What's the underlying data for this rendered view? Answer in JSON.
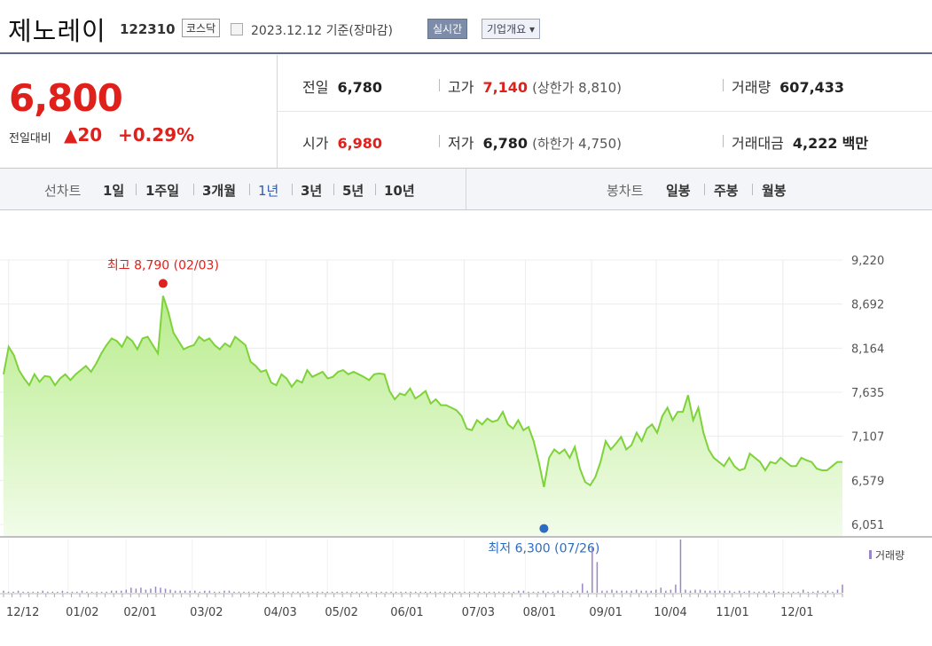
{
  "header": {
    "name": "제노레이",
    "code": "122310",
    "market": "코스닥",
    "date": "2023.12.12  기준(장마감)",
    "btn_realtime": "실시간",
    "btn_company": "기업개요 ▾"
  },
  "price": {
    "current": "6,800",
    "change_label": "전일대비",
    "change_value": "▲20",
    "change_pct": "+0.29%"
  },
  "stats": {
    "prev_label": "전일",
    "prev_value": "6,780",
    "open_label": "시가",
    "open_value": "6,980",
    "high_label": "고가",
    "high_value": "7,140",
    "upper_limit": "(상한가 8,810)",
    "low_label": "저가",
    "low_value": "6,780",
    "lower_limit": "(하한가 4,750)",
    "volume_label": "거래량",
    "volume_value": "607,433",
    "amount_label": "거래대금",
    "amount_value": "4,222",
    "amount_unit": "백만"
  },
  "period_bar": {
    "line_label": "선차트",
    "line_periods": [
      "1일",
      "1주일",
      "3개월",
      "1년",
      "3년",
      "5년",
      "10년"
    ],
    "active_period": "1년",
    "candle_label": "봉차트",
    "candle_periods": [
      "일봉",
      "주봉",
      "월봉"
    ]
  },
  "colors": {
    "red": "#e0201b",
    "blue": "#2d6cc4",
    "line": "#7ed23a",
    "volume": "#9a85c8"
  },
  "chart_data": {
    "type": "area",
    "y_ticks": [
      "9,220",
      "8,692",
      "8,164",
      "7,635",
      "7,107",
      "6,579",
      "6,051"
    ],
    "ylim": [
      6051,
      9220
    ],
    "x_ticks": [
      "12/12",
      "01/02",
      "02/01",
      "03/02",
      "04/03",
      "05/02",
      "06/01",
      "07/03",
      "08/01",
      "09/01",
      "10/04",
      "11/01",
      "12/01"
    ],
    "high_annotation": "최고 8,790 (02/03)",
    "low_annotation": "최저 6,300 (07/26)",
    "volume_legend": "거래량",
    "series": [
      {
        "values": [
          7850,
          8180,
          8080,
          7900,
          7800,
          7720,
          7850,
          7760,
          7830,
          7820,
          7720,
          7800,
          7850,
          7780,
          7850,
          7900,
          7950,
          7880,
          7980,
          8100,
          8200,
          8280,
          8250,
          8180,
          8300,
          8250,
          8150,
          8280,
          8300,
          8200,
          8100,
          8790,
          8600,
          8350,
          8250,
          8150,
          8180,
          8200,
          8300,
          8250,
          8280,
          8200,
          8150,
          8220,
          8180,
          8300,
          8250,
          8200,
          8000,
          7950,
          7880,
          7900,
          7750,
          7720,
          7850,
          7800,
          7700,
          7780,
          7750,
          7900,
          7820,
          7850,
          7880,
          7800,
          7820,
          7880,
          7900,
          7850,
          7880,
          7850,
          7820,
          7780,
          7850,
          7860,
          7850,
          7650,
          7550,
          7620,
          7600,
          7680,
          7560,
          7600,
          7650,
          7500,
          7550,
          7480,
          7480,
          7450,
          7420,
          7350,
          7200,
          7180,
          7300,
          7250,
          7320,
          7280,
          7300,
          7400,
          7250,
          7200,
          7300,
          7180,
          7220,
          7050,
          6800,
          6500,
          6850,
          6950,
          6900,
          6950,
          6850,
          6980,
          6720,
          6560,
          6520,
          6620,
          6800,
          7050,
          6950,
          7020,
          7100,
          6950,
          7000,
          7150,
          7050,
          7200,
          7250,
          7150,
          7350,
          7450,
          7300,
          7400,
          7400,
          7600,
          7300,
          7450,
          7150,
          6950,
          6850,
          6800,
          6750,
          6850,
          6750,
          6700,
          6720,
          6900,
          6850,
          6800,
          6700,
          6800,
          6780,
          6850,
          6800,
          6750,
          6750,
          6850,
          6820,
          6800,
          6720,
          6700,
          6700,
          6750,
          6800,
          6800
        ]
      }
    ],
    "volume": [
      2,
      1,
      1,
      2,
      1,
      1,
      1,
      1,
      2,
      1,
      1,
      1,
      2,
      1,
      1,
      1,
      2,
      1,
      1,
      1,
      1,
      1,
      2,
      2,
      2,
      3,
      5,
      4,
      5,
      3,
      4,
      6,
      5,
      4,
      3,
      2,
      2,
      2,
      2,
      2,
      1,
      2,
      2,
      1,
      1,
      2,
      2,
      1,
      1,
      1,
      1,
      1,
      1,
      1,
      1,
      1,
      1,
      1,
      1,
      1,
      1,
      1,
      1,
      1,
      1,
      1,
      1,
      1,
      1,
      1,
      1,
      1,
      1,
      1,
      1,
      1,
      1,
      1,
      1,
      1,
      1,
      1,
      1,
      1,
      1,
      1,
      1,
      1,
      1,
      1,
      1,
      1,
      1,
      1,
      1,
      1,
      1,
      1,
      1,
      1,
      1,
      1,
      1,
      1,
      1,
      2,
      2,
      1,
      1,
      1,
      2,
      1,
      1,
      2,
      2,
      1,
      1,
      2,
      9,
      2,
      45,
      30,
      2,
      2,
      3,
      2,
      2,
      2,
      2,
      3,
      2,
      2,
      2,
      3,
      5,
      2,
      3,
      8,
      52,
      3,
      2,
      3,
      3,
      2,
      2,
      2,
      2,
      2,
      2,
      1,
      2,
      1,
      2,
      1,
      1,
      2,
      1,
      2,
      1,
      1,
      1,
      1,
      1,
      3,
      1,
      1,
      2,
      1,
      2,
      1,
      3,
      8
    ]
  }
}
